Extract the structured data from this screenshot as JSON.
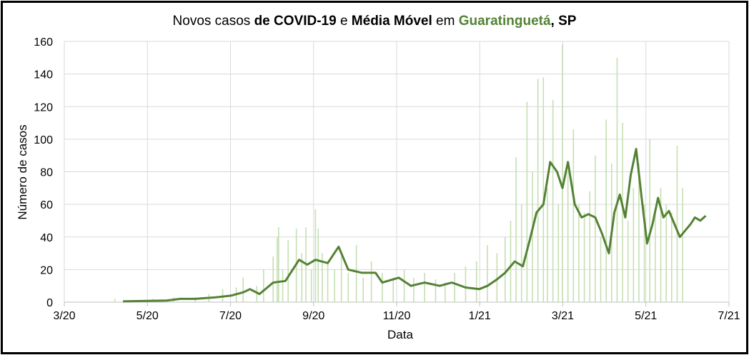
{
  "chart_data": {
    "type": "bar+line",
    "title": {
      "part1": "Novos casos ",
      "part2": "de COVID-19",
      "part3": " e ",
      "part4": "Média Móvel",
      "part5": " em ",
      "place": "Guaratinguetá",
      "part6": ", SP"
    },
    "xlabel": "Data",
    "ylabel": "Número de casos",
    "x_ticks": [
      "3/20",
      "5/20",
      "7/20",
      "9/20",
      "11/20",
      "1/21",
      "3/21",
      "5/21",
      "7/21"
    ],
    "y_ticks": [
      "0",
      "20",
      "40",
      "60",
      "80",
      "100",
      "120",
      "140",
      "160"
    ],
    "ylim": [
      0,
      160
    ],
    "x_start": "2020-03-01",
    "x_end": "2021-07-01",
    "grid": true,
    "colors": {
      "bars": "#c5dfb2",
      "line": "#548235",
      "place": "#548235",
      "grid": "#d9d9d9"
    },
    "series": [
      {
        "name": "Novos casos",
        "kind": "bar",
        "points": [
          [
            "2020-04-07",
            2
          ],
          [
            "2020-04-20",
            1
          ],
          [
            "2020-05-05",
            2
          ],
          [
            "2020-05-20",
            3
          ],
          [
            "2020-06-05",
            3
          ],
          [
            "2020-06-15",
            5
          ],
          [
            "2020-06-25",
            8
          ],
          [
            "2020-07-05",
            9
          ],
          [
            "2020-07-10",
            15
          ],
          [
            "2020-07-20",
            10
          ],
          [
            "2020-07-25",
            20
          ],
          [
            "2020-08-01",
            28
          ],
          [
            "2020-08-04",
            40
          ],
          [
            "2020-08-05",
            46
          ],
          [
            "2020-08-08",
            20
          ],
          [
            "2020-08-12",
            38
          ],
          [
            "2020-08-18",
            45
          ],
          [
            "2020-08-22",
            30
          ],
          [
            "2020-08-25",
            46
          ],
          [
            "2020-08-29",
            20
          ],
          [
            "2020-09-01",
            57
          ],
          [
            "2020-09-03",
            45
          ],
          [
            "2020-09-06",
            30
          ],
          [
            "2020-09-10",
            25
          ],
          [
            "2020-09-15",
            20
          ],
          [
            "2020-09-20",
            28
          ],
          [
            "2020-09-25",
            18
          ],
          [
            "2020-10-01",
            35
          ],
          [
            "2020-10-06",
            15
          ],
          [
            "2020-10-12",
            25
          ],
          [
            "2020-10-20",
            18
          ],
          [
            "2020-10-28",
            15
          ],
          [
            "2020-11-05",
            20
          ],
          [
            "2020-11-12",
            15
          ],
          [
            "2020-11-20",
            18
          ],
          [
            "2020-11-28",
            14
          ],
          [
            "2020-12-05",
            12
          ],
          [
            "2020-12-12",
            18
          ],
          [
            "2020-12-20",
            22
          ],
          [
            "2020-12-28",
            25
          ],
          [
            "2021-01-05",
            35
          ],
          [
            "2021-01-12",
            30
          ],
          [
            "2021-01-18",
            40
          ],
          [
            "2021-01-22",
            50
          ],
          [
            "2021-01-26",
            89
          ],
          [
            "2021-01-30",
            60
          ],
          [
            "2021-02-03",
            123
          ],
          [
            "2021-02-07",
            80
          ],
          [
            "2021-02-11",
            137
          ],
          [
            "2021-02-15",
            138
          ],
          [
            "2021-02-18",
            70
          ],
          [
            "2021-02-22",
            124
          ],
          [
            "2021-02-26",
            60
          ],
          [
            "2021-03-01",
            158
          ],
          [
            "2021-03-05",
            80
          ],
          [
            "2021-03-09",
            106
          ],
          [
            "2021-03-13",
            60
          ],
          [
            "2021-03-17",
            55
          ],
          [
            "2021-03-21",
            68
          ],
          [
            "2021-03-25",
            90
          ],
          [
            "2021-03-29",
            40
          ],
          [
            "2021-04-02",
            112
          ],
          [
            "2021-04-06",
            85
          ],
          [
            "2021-04-10",
            150
          ],
          [
            "2021-04-14",
            110
          ],
          [
            "2021-04-18",
            50
          ],
          [
            "2021-04-22",
            70
          ],
          [
            "2021-04-26",
            85
          ],
          [
            "2021-04-30",
            60
          ],
          [
            "2021-05-04",
            100
          ],
          [
            "2021-05-08",
            55
          ],
          [
            "2021-05-12",
            70
          ],
          [
            "2021-05-16",
            60
          ],
          [
            "2021-05-20",
            55
          ],
          [
            "2021-05-24",
            96
          ],
          [
            "2021-05-28",
            70
          ]
        ]
      },
      {
        "name": "Média Móvel",
        "kind": "line",
        "points": [
          [
            "2020-04-13",
            0.5
          ],
          [
            "2020-05-01",
            0.8
          ],
          [
            "2020-05-15",
            1
          ],
          [
            "2020-05-25",
            2
          ],
          [
            "2020-06-05",
            2
          ],
          [
            "2020-06-20",
            3
          ],
          [
            "2020-07-01",
            4
          ],
          [
            "2020-07-10",
            6
          ],
          [
            "2020-07-15",
            8
          ],
          [
            "2020-07-22",
            5
          ],
          [
            "2020-08-01",
            12
          ],
          [
            "2020-08-10",
            13
          ],
          [
            "2020-08-20",
            26
          ],
          [
            "2020-08-26",
            23
          ],
          [
            "2020-09-01",
            26
          ],
          [
            "2020-09-10",
            24
          ],
          [
            "2020-09-18",
            34
          ],
          [
            "2020-09-25",
            20
          ],
          [
            "2020-10-05",
            18
          ],
          [
            "2020-10-15",
            18
          ],
          [
            "2020-10-20",
            12
          ],
          [
            "2020-11-01",
            15
          ],
          [
            "2020-11-10",
            10
          ],
          [
            "2020-11-20",
            12
          ],
          [
            "2020-12-01",
            10
          ],
          [
            "2020-12-10",
            12
          ],
          [
            "2020-12-20",
            9
          ],
          [
            "2020-12-30",
            8
          ],
          [
            "2021-01-05",
            10
          ],
          [
            "2021-01-12",
            14
          ],
          [
            "2021-01-18",
            18
          ],
          [
            "2021-01-25",
            25
          ],
          [
            "2021-01-31",
            22
          ],
          [
            "2021-02-05",
            38
          ],
          [
            "2021-02-10",
            55
          ],
          [
            "2021-02-15",
            60
          ],
          [
            "2021-02-20",
            86
          ],
          [
            "2021-02-25",
            80
          ],
          [
            "2021-03-01",
            70
          ],
          [
            "2021-03-05",
            86
          ],
          [
            "2021-03-10",
            60
          ],
          [
            "2021-03-15",
            52
          ],
          [
            "2021-03-20",
            54
          ],
          [
            "2021-03-25",
            52
          ],
          [
            "2021-03-30",
            42
          ],
          [
            "2021-04-04",
            30
          ],
          [
            "2021-04-08",
            55
          ],
          [
            "2021-04-12",
            66
          ],
          [
            "2021-04-16",
            52
          ],
          [
            "2021-04-20",
            78
          ],
          [
            "2021-04-24",
            94
          ],
          [
            "2021-04-28",
            64
          ],
          [
            "2021-05-02",
            36
          ],
          [
            "2021-05-06",
            48
          ],
          [
            "2021-05-10",
            64
          ],
          [
            "2021-05-14",
            52
          ],
          [
            "2021-05-18",
            56
          ],
          [
            "2021-05-22",
            48
          ],
          [
            "2021-05-26",
            40
          ],
          [
            "2021-05-30",
            44
          ],
          [
            "2021-06-03",
            48
          ],
          [
            "2021-06-06",
            52
          ],
          [
            "2021-06-10",
            50
          ],
          [
            "2021-06-14",
            53
          ]
        ]
      }
    ]
  }
}
